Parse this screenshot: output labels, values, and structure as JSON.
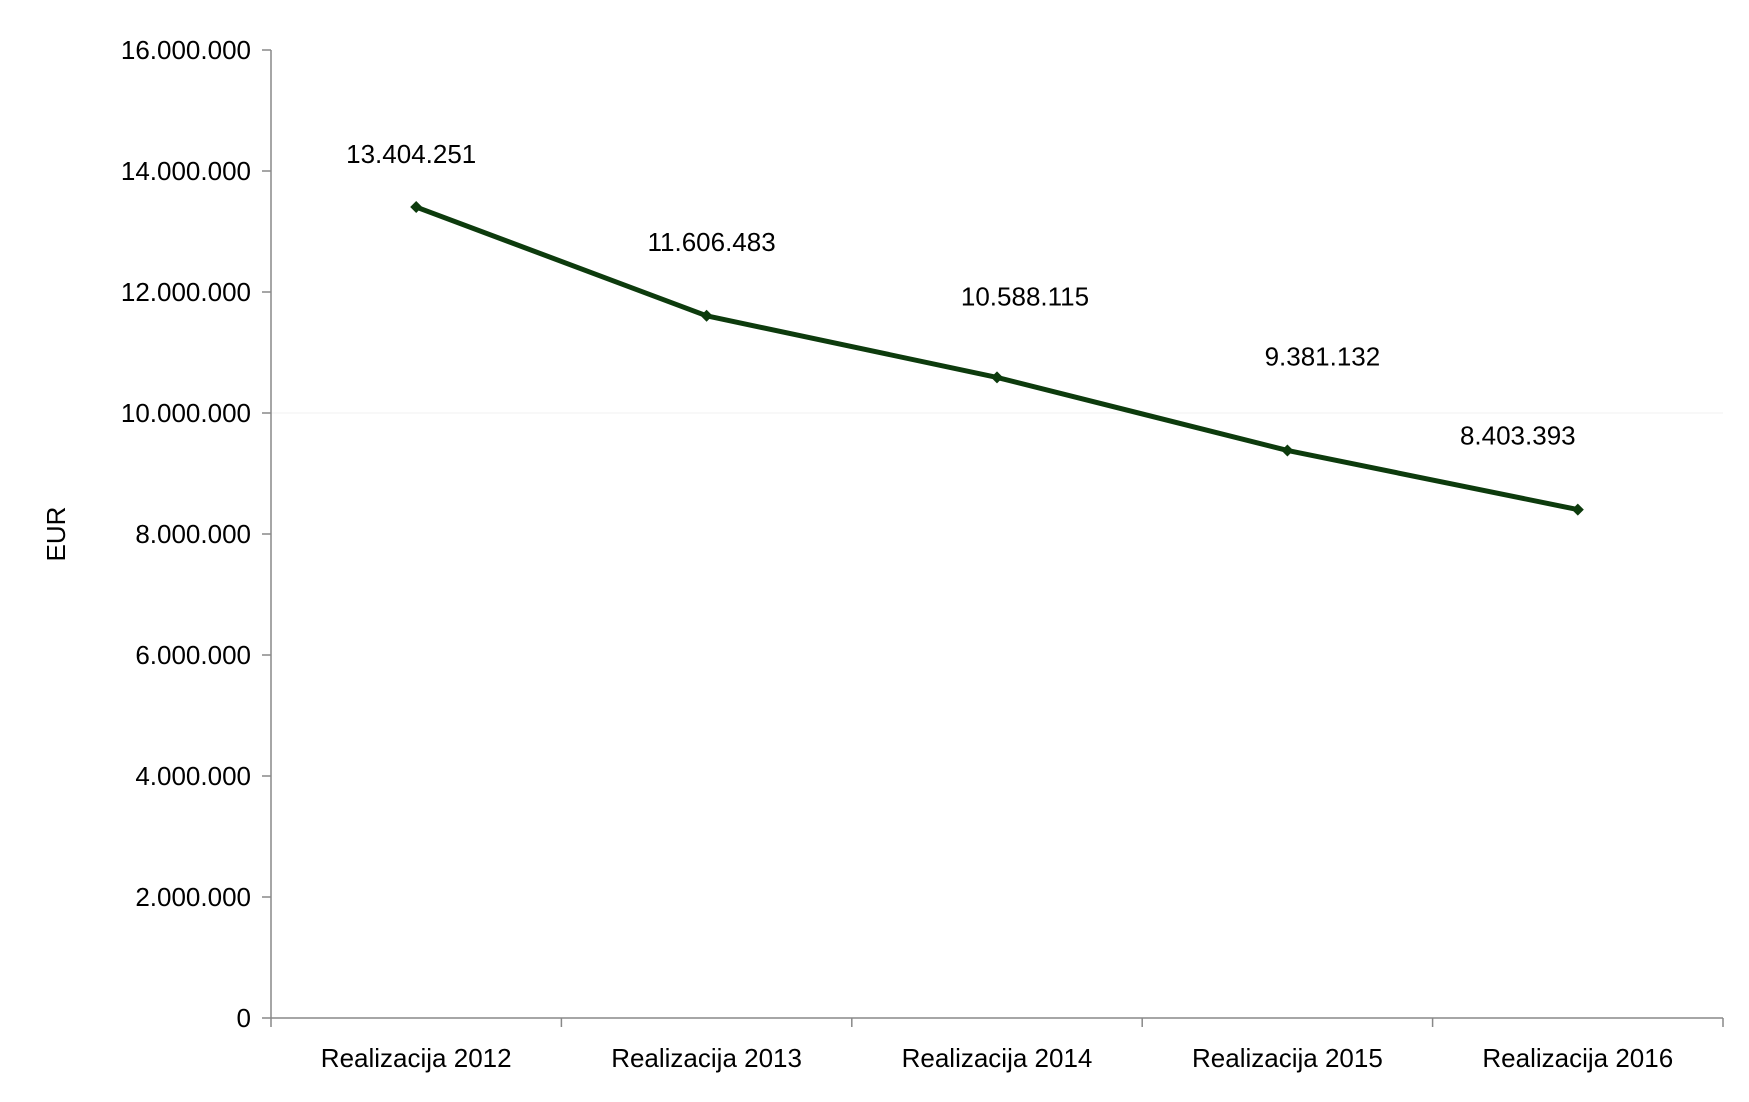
{
  "chart_data": {
    "type": "line",
    "categories": [
      "Realizacija 2012",
      "Realizacija 2013",
      "Realizacija 2014",
      "Realizacija 2015",
      "Realizacija 2016"
    ],
    "series": [
      {
        "values": [
          13404251,
          11606483,
          10588115,
          9381132,
          8403393
        ],
        "labels": [
          "13.404.251",
          "11.606.483",
          "10.588.115",
          "9.381.132",
          "8.403.393"
        ],
        "color": "#0d3b0d"
      }
    ],
    "ylabel": "EUR",
    "ylim": [
      0,
      16000000
    ],
    "yticks": [
      0,
      2000000,
      4000000,
      6000000,
      8000000,
      10000000,
      12000000,
      14000000,
      16000000
    ],
    "ytick_labels": [
      "0",
      "2.000.000",
      "4.000.000",
      "6.000.000",
      "8.000.000",
      "10.000.000",
      "12.000.000",
      "14.000.000",
      "16.000.000"
    ],
    "grid": true,
    "legend": false
  }
}
